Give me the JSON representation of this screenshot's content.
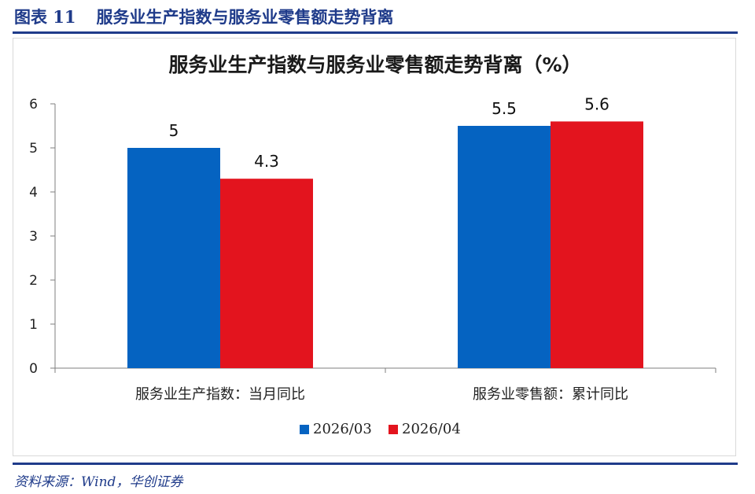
{
  "figure": {
    "number": "图表 11",
    "title": "服务业生产指数与服务业零售额走势背离",
    "source": "资料来源：Wind，华创证券"
  },
  "chart_data": {
    "type": "bar",
    "title": "服务业生产指数与服务业零售额走势背离（%）",
    "categories": [
      "服务业生产指数：当月同比",
      "服务业零售额：累计同比"
    ],
    "series": [
      {
        "name": "2026/03",
        "values": [
          5,
          5.5
        ],
        "color": "#0563c1"
      },
      {
        "name": "2026/04",
        "values": [
          4.3,
          5.6
        ],
        "color": "#e3141e"
      }
    ],
    "ylim": [
      0,
      6
    ],
    "yticks": [
      0,
      1,
      2,
      3,
      4,
      5,
      6
    ],
    "data_labels": true,
    "grid": false,
    "legend_position": "bottom"
  }
}
